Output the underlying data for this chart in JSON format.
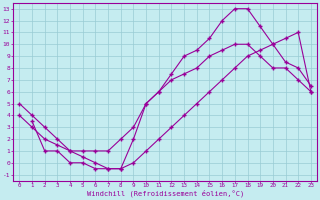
{
  "xlabel": "Windchill (Refroidissement éolien,°C)",
  "xlim": [
    -0.5,
    23.5
  ],
  "ylim": [
    -1.5,
    13.5
  ],
  "xticks": [
    0,
    1,
    2,
    3,
    4,
    5,
    6,
    7,
    8,
    9,
    10,
    11,
    12,
    13,
    14,
    15,
    16,
    17,
    18,
    19,
    20,
    21,
    22,
    23
  ],
  "yticks": [
    -1,
    0,
    1,
    2,
    3,
    4,
    5,
    6,
    7,
    8,
    9,
    10,
    11,
    12,
    13
  ],
  "bg_color": "#c5ecf0",
  "grid_color": "#99ccd4",
  "line_color": "#990099",
  "line1_x": [
    0,
    1,
    2,
    3,
    4,
    5,
    6,
    7,
    8,
    9,
    10,
    11,
    12,
    13,
    14,
    15,
    16,
    17,
    18,
    19,
    20,
    21,
    22,
    23
  ],
  "line1_y": [
    5,
    4,
    3,
    2,
    1,
    1,
    1,
    1,
    2,
    3,
    5,
    6,
    7,
    7.5,
    8,
    9,
    9.5,
    10,
    10,
    9,
    8,
    8,
    7,
    6
  ],
  "line2_x": [
    1,
    2,
    3,
    4,
    5,
    6,
    7,
    8,
    9,
    10,
    11,
    12,
    13,
    14,
    15,
    16,
    17,
    18,
    19,
    20,
    21,
    22,
    23
  ],
  "line2_y": [
    3.5,
    1,
    1,
    0,
    0,
    -0.5,
    -0.5,
    -0.5,
    2,
    5,
    6,
    7.5,
    9,
    9.5,
    10.5,
    12,
    13,
    13,
    11.5,
    10,
    8.5,
    8,
    6.5
  ],
  "line3_x": [
    0,
    1,
    2,
    3,
    4,
    5,
    6,
    7,
    8,
    9,
    10,
    11,
    12,
    13,
    14,
    15,
    16,
    17,
    18,
    19,
    20,
    21,
    22,
    23
  ],
  "line3_y": [
    4,
    3,
    2,
    1.5,
    1,
    0.5,
    0,
    -0.5,
    -0.5,
    0,
    1,
    2,
    3,
    4,
    5,
    6,
    7,
    8,
    9,
    9.5,
    10,
    10.5,
    11,
    6
  ]
}
